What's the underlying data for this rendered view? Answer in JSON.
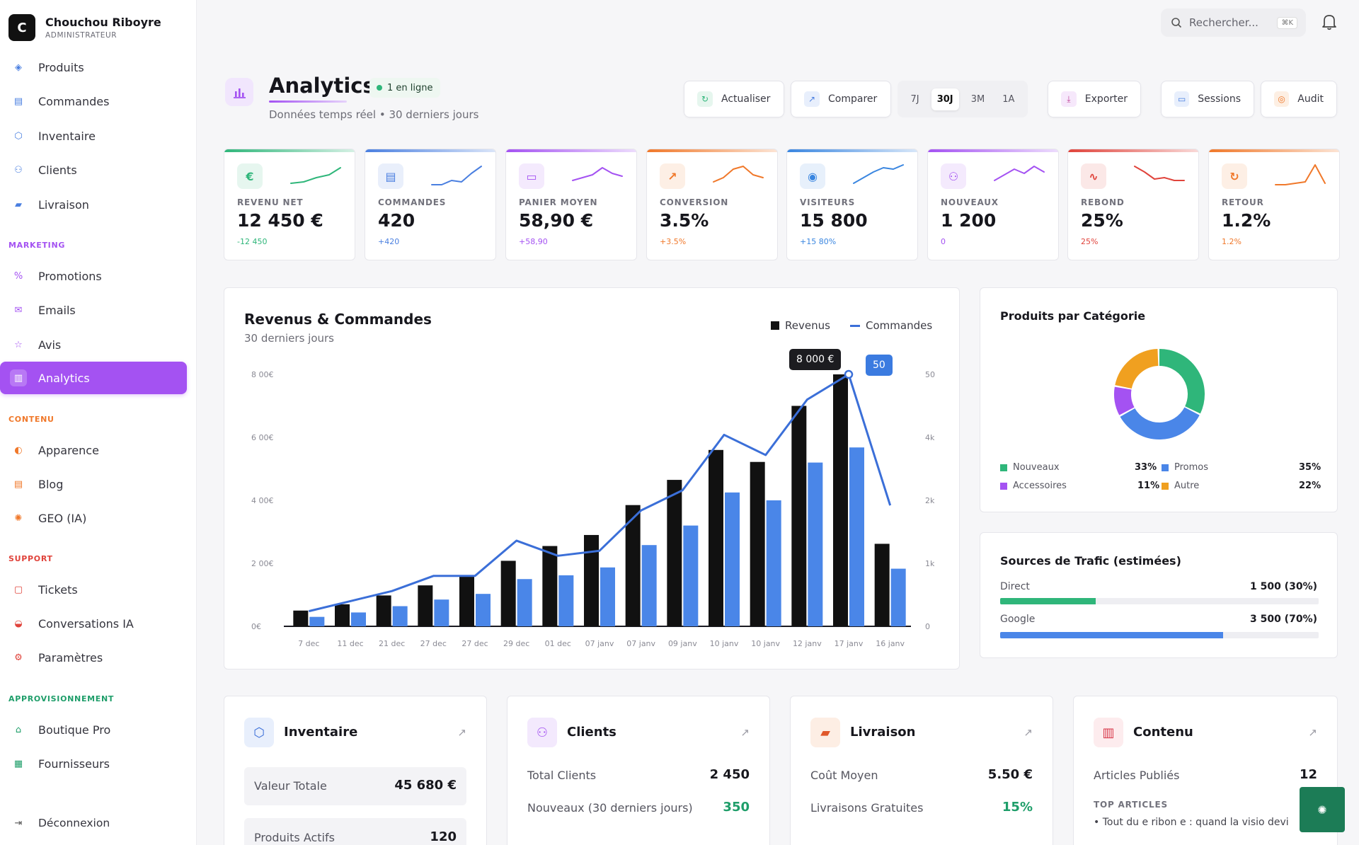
{
  "brand": {
    "initial": "C",
    "name": "Chouchou Riboyre",
    "role": "ADMINISTRATEUR"
  },
  "nav": {
    "items_top": [
      {
        "label": "Produits",
        "icon": "box-icon"
      },
      {
        "label": "Commandes",
        "icon": "receipt-icon"
      },
      {
        "label": "Inventaire",
        "icon": "cube-icon"
      },
      {
        "label": "Clients",
        "icon": "users-icon"
      },
      {
        "label": "Livraison",
        "icon": "truck-icon"
      }
    ],
    "sections": {
      "marketing": "MARKETING",
      "contenu": "CONTENU",
      "support": "SUPPORT",
      "approvisionnement": "APPROVISIONNEMENT"
    },
    "marketing": [
      {
        "label": "Promotions",
        "icon": "percent-icon"
      },
      {
        "label": "Emails",
        "icon": "mail-icon"
      },
      {
        "label": "Avis",
        "icon": "star-icon"
      },
      {
        "label": "Analytics",
        "icon": "bar-chart-icon"
      }
    ],
    "contenu": [
      {
        "label": "Apparence",
        "icon": "palette-icon"
      },
      {
        "label": "Blog",
        "icon": "document-icon"
      },
      {
        "label": "GEO (IA)",
        "icon": "sparkle-icon"
      }
    ],
    "support": [
      {
        "label": "Tickets",
        "icon": "ticket-icon"
      },
      {
        "label": "Conversations IA",
        "icon": "chat-icon"
      },
      {
        "label": "Paramètres",
        "icon": "gear-icon"
      }
    ],
    "approvisionnement": [
      {
        "label": "Boutique Pro",
        "icon": "store-icon"
      },
      {
        "label": "Fournisseurs",
        "icon": "factory-icon"
      }
    ],
    "logout": "Déconnexion",
    "colors": {
      "active": "#a452f2",
      "marketing": "#a452f2",
      "contenu": "#f0782a",
      "support": "#e0433b",
      "approvisionnement": "#1f9e6a"
    }
  },
  "search": {
    "placeholder": "Rechercher...",
    "shortcut": "⌘K"
  },
  "header": {
    "title": "Analytics",
    "status": "1 en ligne",
    "subtitle": "Données temps réel • 30 derniers jours",
    "buttons": {
      "refresh": "Actualiser",
      "compare": "Comparer",
      "export": "Exporter",
      "sessions": "Sessions",
      "audit": "Audit"
    },
    "ranges": [
      "7J",
      "30J",
      "3M",
      "1A"
    ],
    "selected_range": "30J"
  },
  "kpis": [
    {
      "label": "REVENU NET",
      "value": "12 450 €",
      "delta": "-12 450",
      "color": "#2fb67a",
      "icon": "€",
      "icon_name": "euro-icon"
    },
    {
      "label": "COMMANDES",
      "value": "420",
      "delta": "+420",
      "color": "#4a7fe0",
      "icon": "▤",
      "icon_name": "calendar-icon"
    },
    {
      "label": "PANIER MOYEN",
      "value": "58,90 €",
      "delta": "+58,90",
      "color": "#a452f2",
      "icon": "▭",
      "icon_name": "card-icon"
    },
    {
      "label": "CONVERSION",
      "value": "3.5%",
      "delta": "+3.5%",
      "color": "#f0782a",
      "icon": "↗",
      "icon_name": "trend-icon"
    },
    {
      "label": "VISITEURS",
      "value": "15 800",
      "delta": "+15 80%",
      "color": "#3a86e0",
      "icon": "◉",
      "icon_name": "eye-icon"
    },
    {
      "label": "NOUVEAUX",
      "value": "1 200",
      "delta": "0",
      "color": "#a452f2",
      "icon": "⚇",
      "icon_name": "user-plus-icon"
    },
    {
      "label": "REBOND",
      "value": "25%",
      "delta": "25%",
      "color": "#e0433b",
      "icon": "∿",
      "icon_name": "pulse-icon"
    },
    {
      "label": "RETOUR",
      "value": "1.2%",
      "delta": "1.2%",
      "color": "#f0782a",
      "icon": "↻",
      "icon_name": "refresh-icon"
    }
  ],
  "revenue_panel": {
    "title": "Revenus & Commandes",
    "subtitle": "30 derniers jours",
    "legend_revenue": "Revenus",
    "legend_orders": "Commandes",
    "tooltip_revenue": "8 000 €",
    "tooltip_orders": "50"
  },
  "chart_data": {
    "type": "bar",
    "categories": [
      "7 dec",
      "11 dec",
      "21 dec",
      "27 dec",
      "27 dec",
      "29 dec",
      "01 dec",
      "07 janv",
      "07 janv",
      "09 janv",
      "10 janv",
      "10 janv",
      "12 janv",
      "17 janv",
      "16 janv"
    ],
    "series": [
      {
        "name": "Revenus",
        "kind": "bar",
        "axis": "left",
        "color": "#111111",
        "values": [
          500,
          700,
          980,
          1300,
          1580,
          2080,
          2550,
          2900,
          3850,
          4650,
          5600,
          5220,
          7000,
          8000,
          2620
        ]
      },
      {
        "name": "Revenus",
        "kind": "bar",
        "axis": "left",
        "color": "#4a86e8",
        "values": [
          300,
          440,
          640,
          850,
          1030,
          1500,
          1620,
          1870,
          2580,
          3200,
          4250,
          4000,
          5200,
          5680,
          1830
        ]
      },
      {
        "name": "Commandes",
        "kind": "line",
        "axis": "right",
        "color": "#3b6fd8",
        "values": [
          3,
          5,
          7,
          10,
          10,
          17,
          14,
          15,
          23,
          27,
          38,
          34,
          45,
          50,
          24
        ]
      }
    ],
    "yleft_ticks": [
      "8 00€",
      "6 00€",
      "4 00€",
      "2 00€",
      "0€"
    ],
    "yright_ticks": [
      "50",
      "4k",
      "2k",
      "1k",
      "0"
    ],
    "ylim_left": [
      0,
      8000
    ],
    "ylim_right": [
      0,
      50
    ],
    "grid": false
  },
  "categories_panel": {
    "title": "Produits par Catégorie",
    "slices": [
      {
        "label": "Nouveaux",
        "value": 33,
        "pct": "33%",
        "color": "#2fb67a"
      },
      {
        "label": "Promos",
        "value": 35,
        "pct": "35%",
        "color": "#4a86e8"
      },
      {
        "label": "Accessoires",
        "value": 11,
        "pct": "11%",
        "color": "#a452f2"
      },
      {
        "label": "Autre",
        "value": 22,
        "pct": "22%",
        "color": "#f0a020"
      }
    ]
  },
  "traffic_panel": {
    "title": "Sources de Trafic (estimées)",
    "sources": [
      {
        "label": "Direct",
        "value": "1 500 (30%)",
        "fraction": 0.3,
        "color": "#2fb67a"
      },
      {
        "label": "Google",
        "value": "3 500 (70%)",
        "fraction": 0.7,
        "color": "#4a86e8"
      }
    ]
  },
  "cards": {
    "inventaire": {
      "title": "Inventaire",
      "rows": [
        {
          "label": "Valeur Totale",
          "value": "45 680 €"
        },
        {
          "label": "Produits Actifs",
          "value": "120"
        }
      ]
    },
    "clients": {
      "title": "Clients",
      "rows": [
        {
          "label": "Total Clients",
          "value": "2 450"
        },
        {
          "label": "Nouveaux (30 derniers jours)",
          "value": "350"
        }
      ]
    },
    "livraison": {
      "title": "Livraison",
      "rows": [
        {
          "label": "Coût Moyen",
          "value": "5.50 €"
        },
        {
          "label": "Livraisons Gratuites",
          "value": "15%"
        }
      ]
    },
    "contenu": {
      "title": "Contenu",
      "rows": [
        {
          "label": "Articles Publiés",
          "value": "12"
        }
      ],
      "top_label": "TOP ARTICLES",
      "top_item": "• Tout du e ribon e : quand la visio devi"
    }
  }
}
